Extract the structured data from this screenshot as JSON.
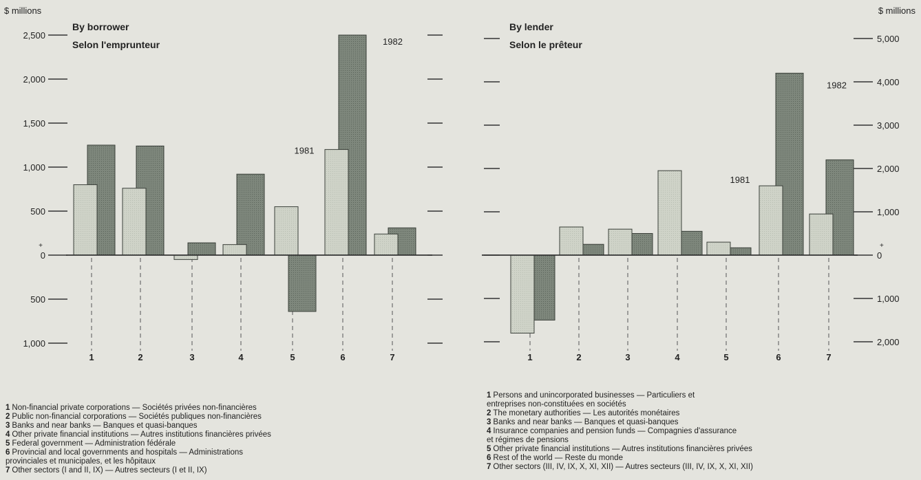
{
  "colors": {
    "background": "#e4e4de",
    "bar_1981": "#cfd3c8",
    "bar_1982": "#7e877c",
    "axis": "#333333"
  },
  "chart_data": [
    {
      "type": "bar",
      "title": "By borrower",
      "subtitle": "Selon l'emprunteur",
      "ylabel": "$ millions",
      "ylim": [
        -1000,
        2500
      ],
      "yticks": [
        -1000,
        -500,
        0,
        500,
        1000,
        1500,
        2000,
        2500
      ],
      "ytick_labels": [
        "1,000",
        "500",
        "0",
        "500",
        "1,000",
        "1,500",
        "2,000",
        "2,500"
      ],
      "ytick_sign": "+",
      "categories": [
        "1",
        "2",
        "3",
        "4",
        "5",
        "6",
        "7"
      ],
      "series": [
        {
          "name": "1981",
          "values": [
            800,
            760,
            -50,
            120,
            550,
            1200,
            240
          ]
        },
        {
          "name": "1982",
          "values": [
            1250,
            1240,
            140,
            920,
            -640,
            2500,
            310
          ]
        }
      ],
      "annotations": [
        {
          "text": "1981",
          "category": "6",
          "series": "1981"
        },
        {
          "text": "1982",
          "category": "6",
          "series": "1982"
        }
      ],
      "legend": [
        {
          "num": "1",
          "lines": [
            "Non-financial private corporations — Sociétés privées non-financières"
          ]
        },
        {
          "num": "2",
          "lines": [
            "Public non-financial corporations — Sociétés publiques non-financières"
          ]
        },
        {
          "num": "3",
          "lines": [
            "Banks and near banks — Banques et quasi-banques"
          ]
        },
        {
          "num": "4",
          "lines": [
            "Other private financial institutions — Autres institutions financières privées"
          ]
        },
        {
          "num": "5",
          "lines": [
            "Federal government — Administration fédérale"
          ]
        },
        {
          "num": "6",
          "lines": [
            "Provincial and local governments and hospitals — Administrations",
            "provinciales et municipales, et les hôpitaux"
          ]
        },
        {
          "num": "7",
          "lines": [
            "Other sectors (I and II, IX) — Autres secteurs (I et II, IX)"
          ]
        }
      ]
    },
    {
      "type": "bar",
      "title": "By lender",
      "subtitle": "Selon le prêteur",
      "ylabel": "$ millions",
      "ylim": [
        -2000,
        5000
      ],
      "yticks": [
        -2000,
        -1000,
        0,
        1000,
        2000,
        3000,
        4000,
        5000
      ],
      "ytick_labels": [
        "2,000",
        "1,000",
        "0",
        "1,000",
        "2,000",
        "3,000",
        "4,000",
        "5,000"
      ],
      "ytick_sign": "+",
      "categories": [
        "1",
        "2",
        "3",
        "4",
        "5",
        "6",
        "7"
      ],
      "series": [
        {
          "name": "1981",
          "values": [
            -1800,
            650,
            600,
            1950,
            300,
            1600,
            950
          ]
        },
        {
          "name": "1982",
          "values": [
            -1500,
            250,
            500,
            550,
            170,
            4200,
            2200
          ]
        }
      ],
      "annotations": [
        {
          "text": "1981",
          "category": "6",
          "series": "1981"
        },
        {
          "text": "1982",
          "category": "6",
          "series": "1982"
        }
      ],
      "legend": [
        {
          "num": "1",
          "lines": [
            "Persons and unincorporated businesses — Particuliers et",
            "entreprises non-constituées en sociétés"
          ]
        },
        {
          "num": "2",
          "lines": [
            "The monetary authorities — Les autorités monétaires"
          ]
        },
        {
          "num": "3",
          "lines": [
            "Banks and near banks — Banques et quasi-banques"
          ]
        },
        {
          "num": "4",
          "lines": [
            "Insurance companies and pension funds — Compagnies d'assurance",
            "et régimes de pensions"
          ]
        },
        {
          "num": "5",
          "lines": [
            "Other private financial institutions — Autres institutions financières privées"
          ]
        },
        {
          "num": "6",
          "lines": [
            "Rest of the world — Reste du monde"
          ]
        },
        {
          "num": "7",
          "lines": [
            "Other sectors (III, IV, IX, X, XI, XII) — Autres secteurs (III, IV, IX, X, XI, XII)"
          ]
        }
      ]
    }
  ]
}
